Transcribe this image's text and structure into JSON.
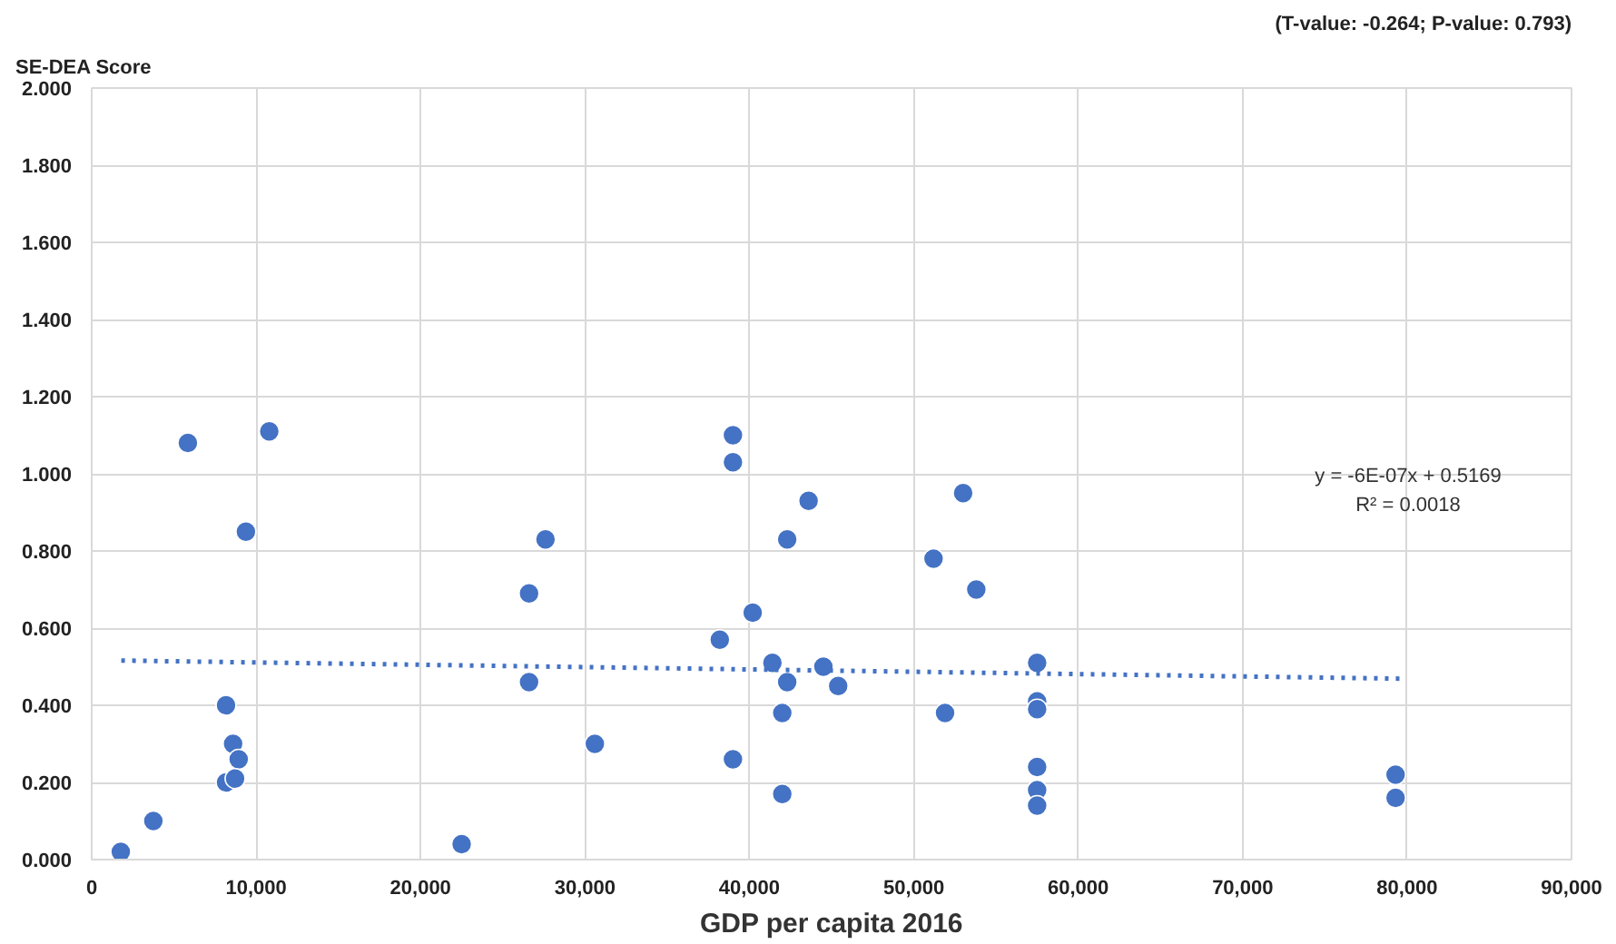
{
  "chart_data": {
    "type": "scatter",
    "xlabel": "GDP per capita 2016",
    "ylabel": "SE-DEA Score",
    "grid": true,
    "annotations": [
      "(T-value: -0.264; P-value: 0.793)",
      "y = -6E-07x + 0.5169\nR² = 0.0018"
    ],
    "xlim": [
      0,
      90000
    ],
    "ylim": [
      0,
      2
    ],
    "xticks": [
      0,
      {
        "value": 10000,
        "label": "10,000"
      },
      {
        "value": 20000,
        "label": "20,000"
      },
      {
        "value": 30000,
        "label": "30,000"
      },
      {
        "value": 40000,
        "label": "40,000"
      },
      {
        "value": 50000,
        "label": "50,000"
      },
      {
        "value": 60000,
        "label": "60,000"
      },
      {
        "value": 70000,
        "label": "70,000"
      },
      {
        "value": 80000,
        "label": "80,000"
      },
      {
        "value": 90000,
        "label": "90,000"
      }
    ],
    "yticks": [
      {
        "value": 0,
        "label": "0.000"
      },
      {
        "value": 0.2,
        "label": "0.200"
      },
      {
        "value": 0.4,
        "label": "0.400"
      },
      {
        "value": 0.6,
        "label": "0.600"
      },
      {
        "value": 0.8,
        "label": "0.800"
      },
      {
        "value": 1.0,
        "label": "1.000"
      },
      {
        "value": 1.2,
        "label": "1.200"
      },
      {
        "value": 1.4,
        "label": "1.400"
      },
      {
        "value": 1.6,
        "label": "1.600"
      },
      {
        "value": 1.8,
        "label": "1.800"
      },
      {
        "value": 2.0,
        "label": "2.000"
      }
    ],
    "series": [
      {
        "marker": "circle",
        "color": "#4472c4",
        "x": [
          1770,
          3750,
          5850,
          10800,
          9380,
          8170,
          8600,
          8940,
          8170,
          8720,
          22500,
          26600,
          26600,
          27600,
          30600,
          38200,
          39000,
          39000,
          39000,
          40200,
          41400,
          42300,
          42000,
          42000,
          42300,
          43600,
          44500,
          45400,
          51200,
          51900,
          53000,
          53800,
          57500,
          57500,
          57500,
          57500,
          57500,
          57500,
          79300,
          79300
        ],
        "values": [
          0.02,
          0.1,
          1.08,
          1.11,
          0.85,
          0.4,
          0.3,
          0.26,
          0.2,
          0.21,
          0.04,
          0.69,
          0.46,
          0.83,
          0.3,
          0.57,
          1.1,
          1.03,
          0.26,
          0.64,
          0.51,
          0.46,
          0.38,
          0.17,
          0.83,
          0.93,
          0.5,
          0.45,
          0.78,
          0.38,
          0.95,
          0.7,
          0.51,
          0.41,
          0.39,
          0.24,
          0.18,
          0.14,
          0.22,
          0.16
        ]
      },
      {
        "type": "line",
        "color": "#4472c4",
        "line_style": "dotted",
        "x": [
          1800,
          79600
        ],
        "values": [
          0.516,
          0.469
        ]
      }
    ]
  }
}
